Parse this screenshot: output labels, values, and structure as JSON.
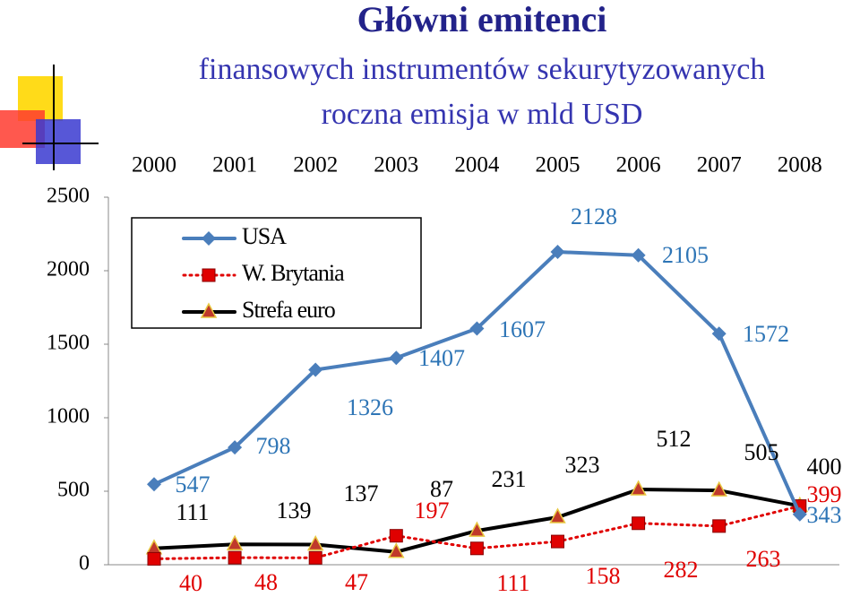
{
  "chart_data": {
    "type": "line",
    "title": "Główni emitenci",
    "subtitle": [
      "finansowych instrumentów sekurytyzowanych",
      "roczna emisja w mld USD"
    ],
    "categories": [
      "2000",
      "2001",
      "2002",
      "2003",
      "2004",
      "2005",
      "2006",
      "2007",
      "2008"
    ],
    "series": [
      {
        "name": "USA",
        "color": "#4a7ebb",
        "values": [
          547,
          798,
          1326,
          1407,
          1607,
          2128,
          2105,
          1572,
          343
        ]
      },
      {
        "name": "W. Brytania",
        "color": "#e00000",
        "values": [
          40,
          48,
          47,
          197,
          111,
          158,
          282,
          263,
          399
        ]
      },
      {
        "name": "Strefa euro",
        "color": "#000000",
        "values": [
          111,
          139,
          137,
          87,
          231,
          323,
          512,
          505,
          400
        ]
      }
    ],
    "ylim": [
      0,
      2500
    ],
    "yticks": [
      0,
      500,
      1000,
      1500,
      2000,
      2500
    ],
    "legend": "upper left"
  }
}
